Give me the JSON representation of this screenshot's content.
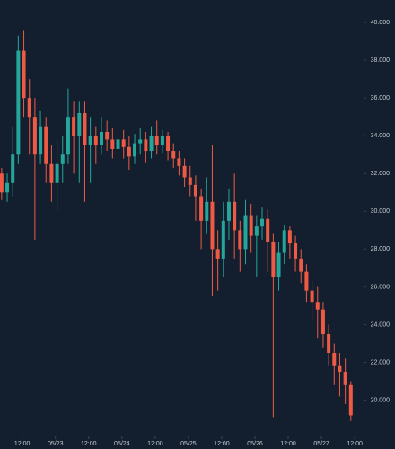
{
  "chart_data": {
    "type": "candlestick",
    "open": [
      32,
      31,
      31.5,
      33,
      38.5,
      36,
      35,
      33,
      34.5,
      32.5,
      31.5,
      32.5,
      33,
      35,
      34,
      35.2,
      33.5,
      34,
      33.5,
      34.2,
      33.8,
      33.3,
      33.8,
      33.4,
      32.9,
      33.6,
      33.8,
      33.2,
      34,
      33.5,
      34,
      33.2,
      32.8,
      32.4,
      31.8,
      31.4,
      30.8,
      29.5,
      30.5,
      28,
      27.5,
      29.5,
      30.5,
      29,
      28,
      29.8,
      28.7,
      29.2,
      29.6,
      28.4,
      26.5,
      27.8,
      29,
      28.3,
      27.5,
      26.8,
      25.8,
      25.2,
      24.8,
      23.5,
      22.5,
      21.8,
      21.5,
      20.8
    ],
    "high": [
      32.3,
      32,
      34.5,
      39.3,
      39.6,
      37,
      36,
      35.3,
      35,
      33.5,
      33.8,
      34,
      36.5,
      35.8,
      35.8,
      35.8,
      35,
      34.5,
      35,
      34.8,
      34.4,
      34.2,
      34.3,
      34,
      34.1,
      34.4,
      34.2,
      34.5,
      34.8,
      34.3,
      34.2,
      33.6,
      33.2,
      32.8,
      32.4,
      31.9,
      31.2,
      31.8,
      33.5,
      29,
      30.5,
      31.2,
      32,
      29.5,
      30.6,
      30.4,
      29.8,
      30.2,
      30.1,
      28.8,
      28.4,
      29.3,
      29.2,
      28.7,
      28,
      27.2,
      26.3,
      26,
      25.2,
      24,
      23,
      22.5,
      22.2,
      21
    ],
    "low": [
      30.6,
      30.5,
      30.8,
      32.5,
      35,
      33,
      28.5,
      32.5,
      31.5,
      30.5,
      30,
      31.5,
      32.5,
      32,
      31.5,
      30.5,
      31.5,
      32.5,
      33,
      33.2,
      32.8,
      32.7,
      32.8,
      32.2,
      32.5,
      33,
      32.6,
      32.8,
      33,
      33.1,
      32.7,
      32.3,
      31.9,
      31.3,
      30.8,
      29.5,
      28,
      28.8,
      25.5,
      25.8,
      26.5,
      28.5,
      27.5,
      26.8,
      27.2,
      27.8,
      26.5,
      28.5,
      26.8,
      19.1,
      25.8,
      27.2,
      27.5,
      26.8,
      26.2,
      25.2,
      24.2,
      23.3,
      22.8,
      21.8,
      20.8,
      20.2,
      19.8,
      18.9
    ],
    "close": [
      31,
      31.5,
      33,
      38.5,
      36,
      35,
      33,
      34.5,
      32.5,
      31.5,
      32.5,
      33,
      35,
      34,
      35.2,
      33.5,
      34,
      33.5,
      34.2,
      33.8,
      33.3,
      33.8,
      33.4,
      32.9,
      33.6,
      33.8,
      33.2,
      34,
      33.5,
      34,
      33.2,
      32.8,
      32.4,
      31.8,
      31.4,
      30.8,
      29.5,
      30.5,
      28,
      27.5,
      29.5,
      30.5,
      29,
      28,
      29.8,
      28.7,
      29.2,
      29.6,
      28.4,
      26.5,
      27.8,
      29,
      28.3,
      27.5,
      26.8,
      25.8,
      25.2,
      24.8,
      23.5,
      22.5,
      21.8,
      21.5,
      20.8,
      19.2
    ],
    "up_color": "#26a69a",
    "down_color": "#ef5a45",
    "xlim": [
      -0.3,
      65.3
    ],
    "xticks": [
      {
        "value": 3.7,
        "label": "12:00"
      },
      {
        "value": 9.7,
        "label": "05/23"
      },
      {
        "value": 15.7,
        "label": "12:00"
      },
      {
        "value": 21.7,
        "label": "05/24"
      },
      {
        "value": 27.7,
        "label": "12:00"
      },
      {
        "value": 33.7,
        "label": "05/25"
      },
      {
        "value": 39.7,
        "label": "12:00"
      },
      {
        "value": 45.7,
        "label": "05/26"
      },
      {
        "value": 51.7,
        "label": "12:00"
      },
      {
        "value": 57.7,
        "label": "05/27"
      },
      {
        "value": 63.7,
        "label": "12:00"
      }
    ],
    "ylim": [
      18.84,
      41.19
    ],
    "yticks": [
      {
        "value": 20,
        "label": "20.000"
      },
      {
        "value": 22,
        "label": "22.000"
      },
      {
        "value": 24,
        "label": "24.000"
      },
      {
        "value": 26,
        "label": "26.000"
      },
      {
        "value": 28,
        "label": "28.000"
      },
      {
        "value": 30,
        "label": "30.000"
      },
      {
        "value": 32,
        "label": "32.000"
      },
      {
        "value": 34,
        "label": "34.000"
      },
      {
        "value": 36,
        "label": "36.000"
      },
      {
        "value": 38,
        "label": "38.000"
      },
      {
        "value": 40,
        "label": "40.000"
      }
    ]
  }
}
